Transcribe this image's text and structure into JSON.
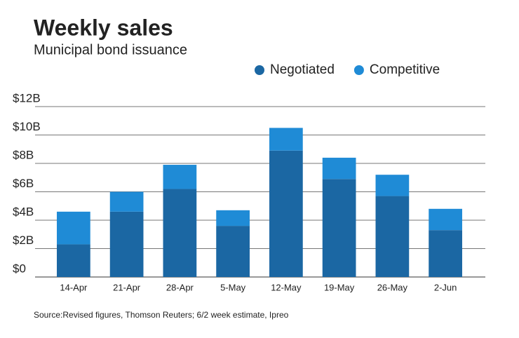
{
  "chart_data": {
    "type": "stacked-bar",
    "title": "Weekly sales",
    "subtitle": "Municipal bond issuance",
    "source": "Source:Revised figures, Thomson Reuters; 6/2 week estimate, Ipreo",
    "categories": [
      "14-Apr",
      "21-Apr",
      "28-Apr",
      "5-May",
      "12-May",
      "19-May",
      "26-May",
      "2-Jun"
    ],
    "series": [
      {
        "name": "Negotiated",
        "color": "#1b67a3",
        "values": [
          2.3,
          4.6,
          6.2,
          3.6,
          8.9,
          6.9,
          5.7,
          3.3
        ]
      },
      {
        "name": "Competitive",
        "color": "#1f8bd6",
        "values": [
          2.3,
          1.4,
          1.7,
          1.1,
          1.6,
          1.5,
          1.5,
          1.5
        ]
      }
    ],
    "ylim": [
      0,
      12
    ],
    "yticks": [
      {
        "value": 0,
        "label": "$0"
      },
      {
        "value": 2,
        "label": "$2B"
      },
      {
        "value": 4,
        "label": "$4B"
      },
      {
        "value": 6,
        "label": "$6B"
      },
      {
        "value": 8,
        "label": "$8B"
      },
      {
        "value": 10,
        "label": "$10B"
      },
      {
        "value": 12,
        "label": "$12B"
      }
    ],
    "grid": true
  }
}
